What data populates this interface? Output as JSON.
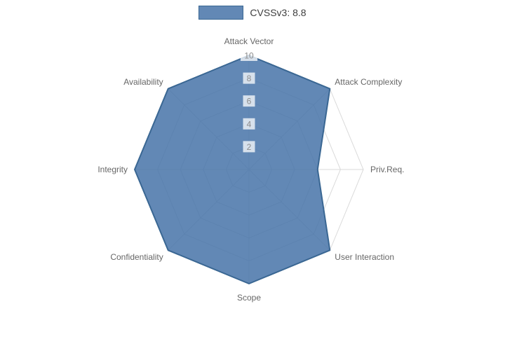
{
  "legend": {
    "label": "CVSSv3: 8.8"
  },
  "chart_data": {
    "type": "radar",
    "title": "",
    "categories": [
      "Attack Vector",
      "Attack Complexity",
      "Priv.Req.",
      "User Interaction",
      "Scope",
      "Confidentiality",
      "Integrity",
      "Availability"
    ],
    "series": [
      {
        "name": "CVSSv3: 8.8",
        "values": [
          10,
          10,
          6,
          10,
          10,
          10,
          10,
          10
        ]
      }
    ],
    "rmin": 0,
    "rmax": 10,
    "ticks": [
      2,
      4,
      6,
      8,
      10
    ],
    "grid": true,
    "legend_position": "top",
    "colors": {
      "fill": "rgba(71,115,168,0.85)",
      "stroke": "#3a6793",
      "grid": "#dadada",
      "tick_text": "#8c8c8c",
      "tick_backdrop": "rgba(255,255,255,0.75)",
      "label_text": "#666666"
    }
  }
}
